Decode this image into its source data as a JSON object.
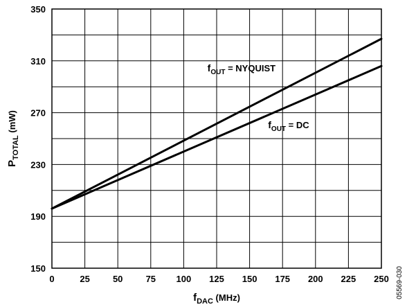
{
  "chart_data": {
    "type": "line",
    "title": "",
    "xlabel": {
      "base": "f",
      "sub": "DAC",
      "rest": " (MHz)"
    },
    "ylabel": {
      "base": "P",
      "sub": "TOTAL",
      "rest": " (mW)"
    },
    "xlim": [
      0,
      250
    ],
    "ylim": [
      150,
      350
    ],
    "xticks": [
      0,
      25,
      50,
      75,
      100,
      125,
      150,
      175,
      200,
      225,
      250
    ],
    "yticks": [
      150,
      190,
      230,
      270,
      310,
      350
    ],
    "xgrid": [
      0,
      25,
      50,
      75,
      100,
      125,
      150,
      175,
      200,
      225,
      250
    ],
    "ygrid": [
      150,
      170,
      190,
      210,
      230,
      250,
      270,
      290,
      310,
      330,
      350
    ],
    "grid": true,
    "series": [
      {
        "label": {
          "base": "f",
          "sub": "OUT",
          "rest": " = NYQUIST"
        },
        "x": [
          0,
          250
        ],
        "y": [
          196,
          327
        ],
        "label_anchor": [
          118,
          302
        ]
      },
      {
        "label": {
          "base": "f",
          "sub": "OUT",
          "rest": " = DC"
        },
        "x": [
          0,
          250
        ],
        "y": [
          196,
          306
        ],
        "label_anchor": [
          164,
          258
        ]
      }
    ],
    "figure_id": "05569-030"
  }
}
